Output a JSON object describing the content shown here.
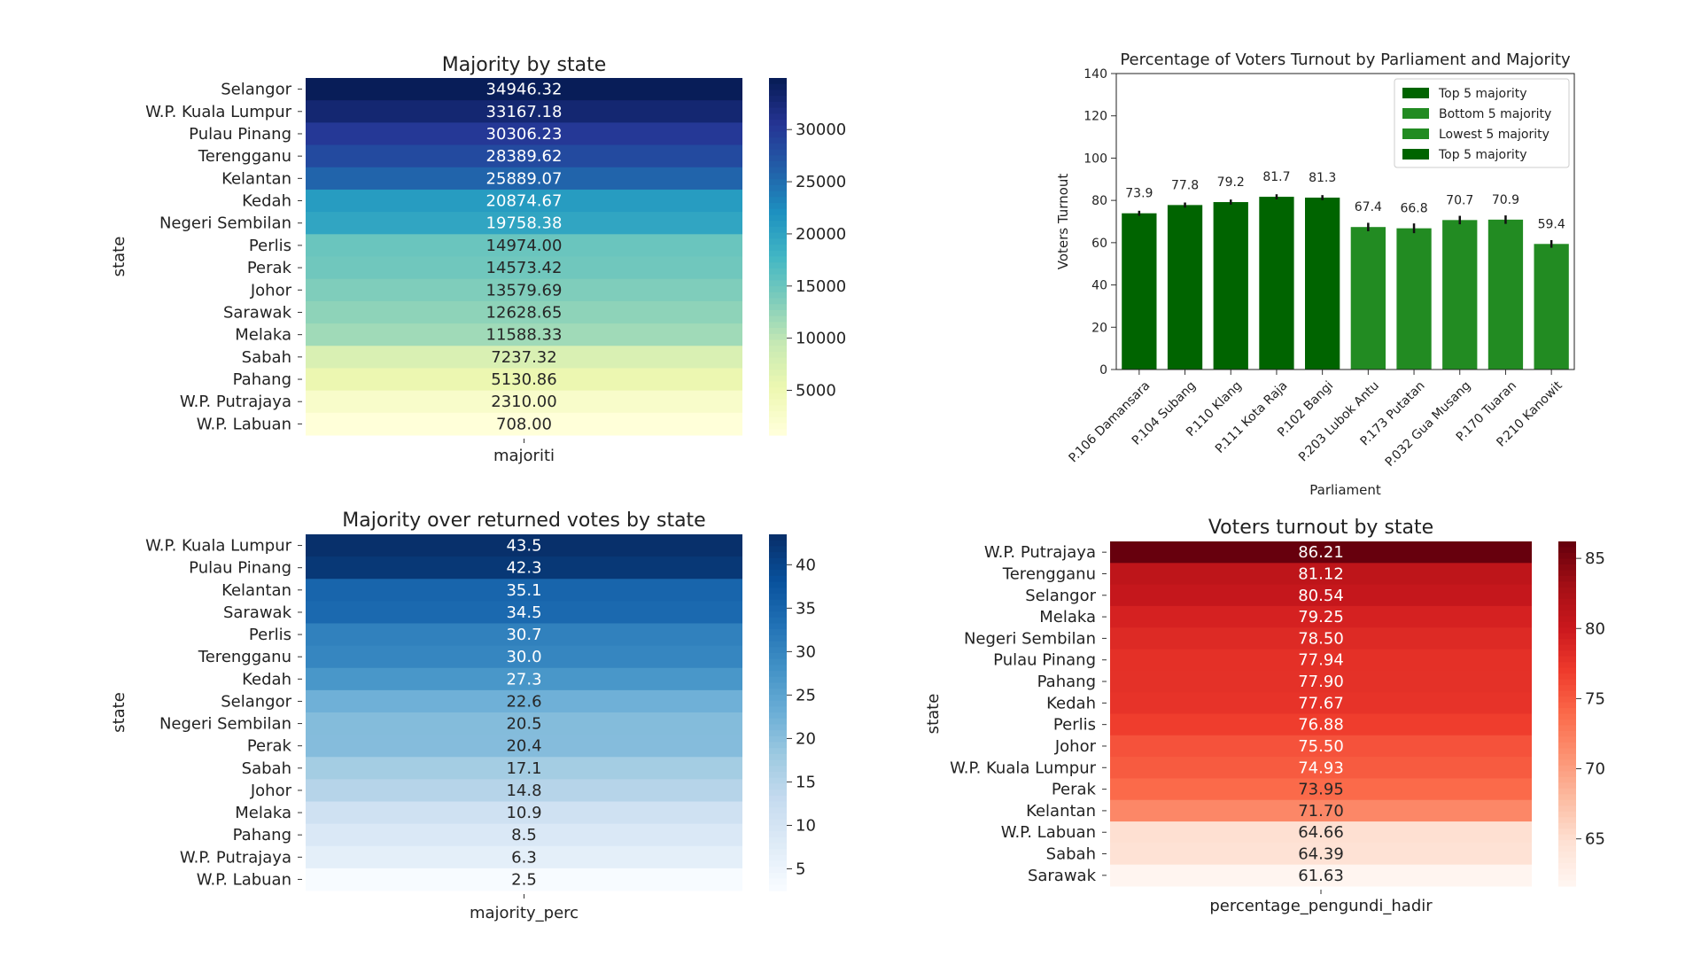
{
  "chart_data": [
    {
      "type": "heatmap",
      "title": "Majority by state",
      "xlabel": "majoriti",
      "ylabel": "state",
      "colormap": "YlGnBu",
      "cmap_stops": [
        "#ffffd9",
        "#edf8b1",
        "#c7e9b4",
        "#7fcdbb",
        "#41b6c4",
        "#1d91c0",
        "#225ea8",
        "#253494",
        "#081d58"
      ],
      "vmin": 708.0,
      "vmax": 34946.32,
      "format": "2f",
      "states": [
        "Selangor",
        "W.P. Kuala Lumpur",
        "Pulau Pinang",
        "Terengganu",
        "Kelantan",
        "Kedah",
        "Negeri Sembilan",
        "Perlis",
        "Perak",
        "Johor",
        "Sarawak",
        "Melaka",
        "Sabah",
        "Pahang",
        "W.P. Putrajaya",
        "W.P. Labuan"
      ],
      "values": [
        34946.32,
        33167.18,
        30306.23,
        28389.62,
        25889.07,
        20874.67,
        19758.38,
        14974.0,
        14573.42,
        13579.69,
        12628.65,
        11588.33,
        7237.32,
        5130.86,
        2310.0,
        708.0
      ],
      "colorbar_ticks": [
        5000,
        10000,
        15000,
        20000,
        25000,
        30000
      ]
    },
    {
      "type": "bar",
      "title": "Percentage of Voters Turnout by Parliament and Majority",
      "xlabel": "Parliament",
      "ylabel": "Voters Turnout",
      "ylim": [
        0,
        140
      ],
      "yticks": [
        0,
        20,
        40,
        60,
        80,
        100,
        120,
        140
      ],
      "categories": [
        "P.106 Damansara",
        "P.104 Subang",
        "P.110 Klang",
        "P.111 Kota Raja",
        "P.102 Bangi",
        "P.203 Lubok Antu",
        "P.173 Putatan",
        "P.032 Gua Musang",
        "P.170 Tuaran",
        "P.210 Kanowit"
      ],
      "values": [
        73.9,
        77.8,
        79.2,
        81.7,
        81.3,
        67.4,
        66.8,
        70.7,
        70.9,
        59.4
      ],
      "value_labels": [
        "73.9",
        "77.8",
        "79.2",
        "81.7",
        "81.3",
        "67.4",
        "66.8",
        "70.7",
        "70.9",
        "59.4"
      ],
      "error": [
        1.2,
        1.2,
        1.2,
        1.2,
        1.2,
        2.0,
        2.3,
        2.0,
        2.0,
        1.8
      ],
      "group": [
        "top",
        "top",
        "top",
        "top",
        "top",
        "bottom",
        "bottom",
        "bottom",
        "bottom",
        "bottom"
      ],
      "colors": {
        "top": "#006400",
        "bottom": "#228b22",
        "error": "#111111"
      },
      "legend": {
        "placement": "top-right",
        "entries": [
          {
            "label": "Top 5 majority",
            "color": "#006400"
          },
          {
            "label": "Bottom 5 majority",
            "color": "#228b22"
          },
          {
            "label": "Lowest 5 majority",
            "color": "#228b22"
          },
          {
            "label": "Top 5 majority",
            "color": "#006400"
          }
        ]
      }
    },
    {
      "type": "heatmap",
      "title": "Majority over returned votes by state",
      "xlabel": "majority_perc",
      "ylabel": "state",
      "colormap": "Blues",
      "cmap_stops": [
        "#f7fbff",
        "#deebf7",
        "#c6dbef",
        "#9ecae1",
        "#6baed6",
        "#4292c6",
        "#2171b5",
        "#08519c",
        "#08306b"
      ],
      "vmin": 2.5,
      "vmax": 43.5,
      "format": "1f",
      "states": [
        "W.P. Kuala Lumpur",
        "Pulau Pinang",
        "Kelantan",
        "Sarawak",
        "Perlis",
        "Terengganu",
        "Kedah",
        "Selangor",
        "Negeri Sembilan",
        "Perak",
        "Sabah",
        "Johor",
        "Melaka",
        "Pahang",
        "W.P. Putrajaya",
        "W.P. Labuan"
      ],
      "values": [
        43.5,
        42.3,
        35.1,
        34.5,
        30.7,
        30.0,
        27.3,
        22.6,
        20.5,
        20.4,
        17.1,
        14.8,
        10.9,
        8.5,
        6.3,
        2.5
      ],
      "colorbar_ticks": [
        5,
        10,
        15,
        20,
        25,
        30,
        35,
        40
      ]
    },
    {
      "type": "heatmap",
      "title": "Voters turnout by state",
      "xlabel": "percentage_pengundi_hadir",
      "ylabel": "state",
      "colormap": "Reds",
      "cmap_stops": [
        "#fff5f0",
        "#fee0d2",
        "#fcbba1",
        "#fc9272",
        "#fb6a4a",
        "#ef3b2c",
        "#cb181d",
        "#a50f15",
        "#67000d"
      ],
      "vmin": 61.63,
      "vmax": 86.21,
      "format": "2f",
      "states": [
        "W.P. Putrajaya",
        "Terengganu",
        "Selangor",
        "Melaka",
        "Negeri Sembilan",
        "Pulau Pinang",
        "Pahang",
        "Kedah",
        "Perlis",
        "Johor",
        "W.P. Kuala Lumpur",
        "Perak",
        "Kelantan",
        "W.P. Labuan",
        "Sabah",
        "Sarawak"
      ],
      "values": [
        86.21,
        81.12,
        80.54,
        79.25,
        78.5,
        77.94,
        77.9,
        77.67,
        76.88,
        75.5,
        74.93,
        73.95,
        71.7,
        64.66,
        64.39,
        61.63
      ],
      "colorbar_ticks": [
        65,
        70,
        75,
        80,
        85
      ]
    }
  ]
}
